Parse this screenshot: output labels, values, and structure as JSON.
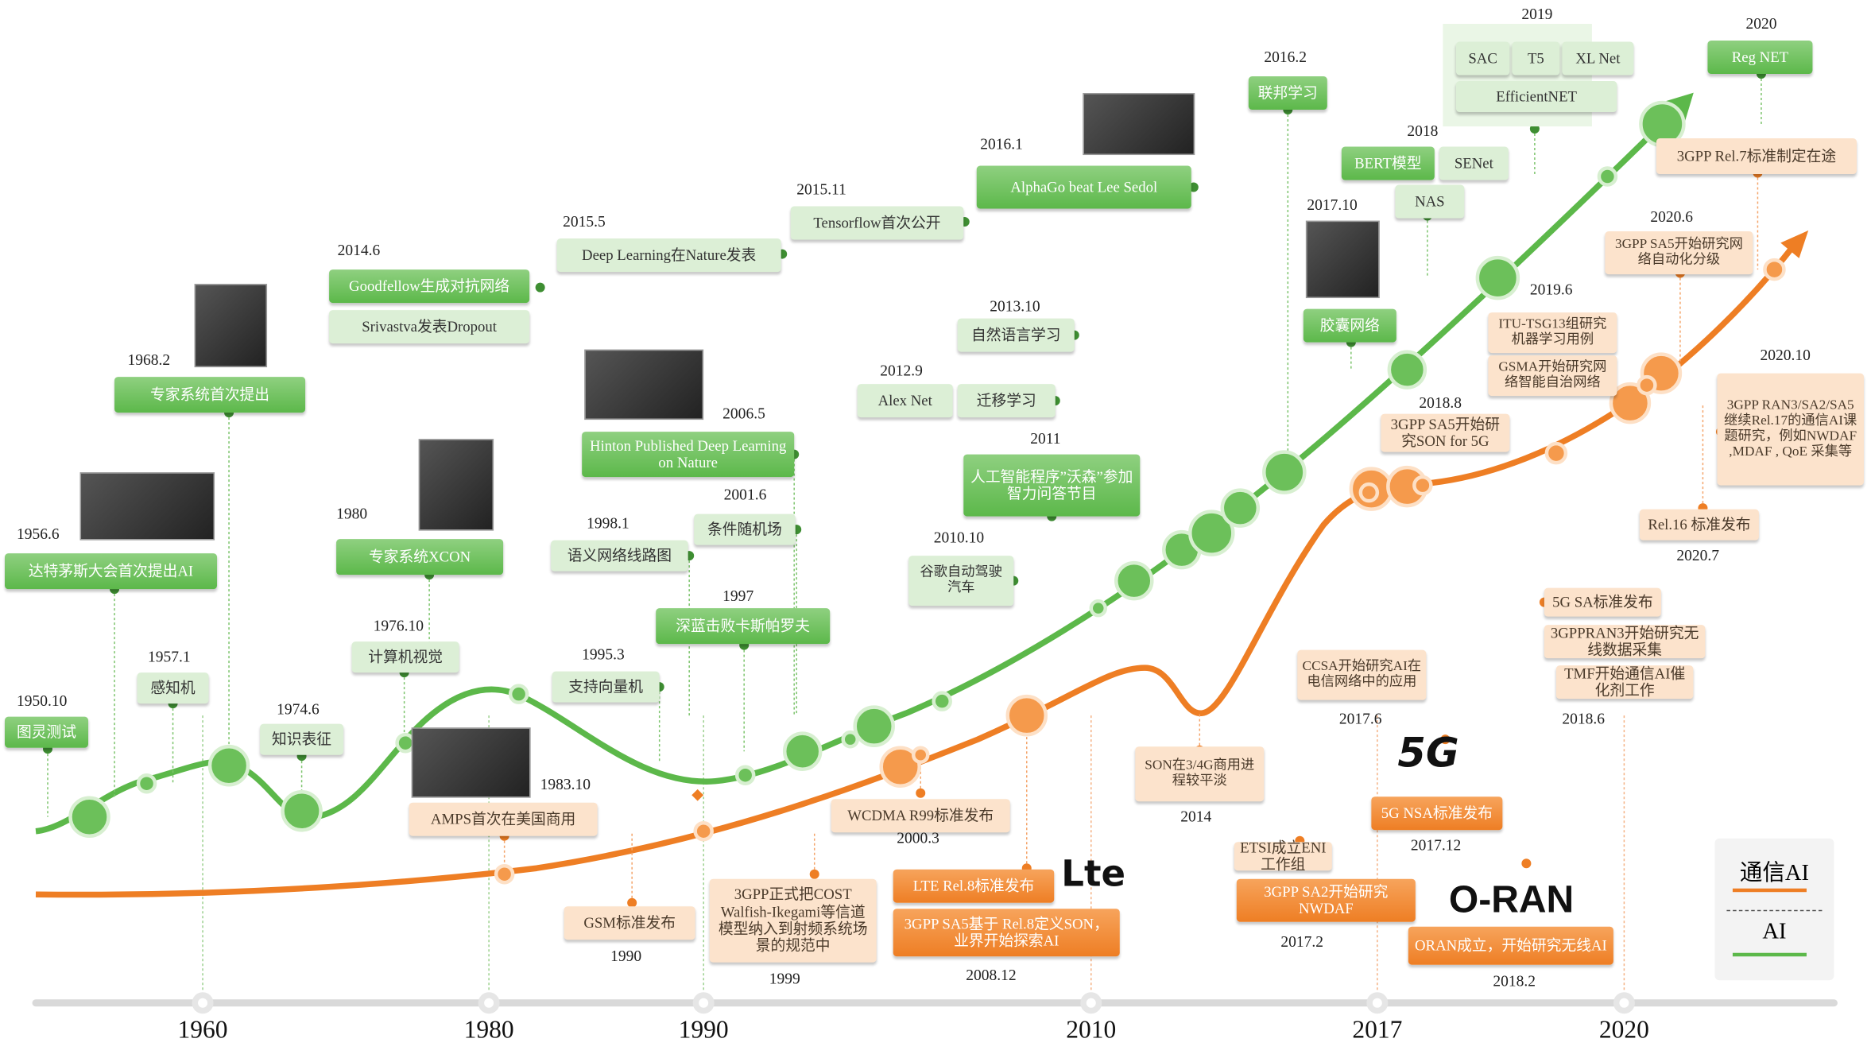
{
  "colors": {
    "ai": "#5cb84a",
    "comm": "#ee7e24",
    "axis": "#d9d9d9"
  },
  "axis": {
    "labels": [
      "1960",
      "1980",
      "1990",
      "2010",
      "2017",
      "2020"
    ]
  },
  "legend": {
    "comm_label": "通信AI",
    "ai_label": "AI"
  },
  "logos": {
    "g5": "5G",
    "lte": "Lte",
    "oran": "O-RAN"
  },
  "ai_events": [
    {
      "date": "1950.10",
      "text": "图灵测试"
    },
    {
      "date": "1957.1",
      "text": "感知机"
    },
    {
      "date": "1956.6",
      "text": "达特茅斯大会首次提出AI"
    },
    {
      "date": "1968.2",
      "text": "专家系统首次提出"
    },
    {
      "date": "1974.6",
      "text": "知识表征"
    },
    {
      "date": "1976.10",
      "text": "计算机视觉"
    },
    {
      "date": "1980",
      "text": "专家系统XCON"
    },
    {
      "date": "1995.3",
      "text": "支持向量机"
    },
    {
      "date": "1998.1",
      "text": "语义网络线路图"
    },
    {
      "date": "2001.6",
      "text": "条件随机场"
    },
    {
      "date": "1997",
      "text": "深蓝击败卡斯帕罗夫"
    },
    {
      "date": "2006.5",
      "text": "Hinton Published Deep Learning on Nature"
    },
    {
      "date": "2014.6",
      "text": "Goodfellow生成对抗网络"
    },
    {
      "date": "",
      "text": "Srivastva发表Dropout"
    },
    {
      "date": "2015.5",
      "text": "Deep Learning在Nature发表"
    },
    {
      "date": "2015.11",
      "text": "Tensorflow首次公开"
    },
    {
      "date": "2016.1",
      "text": "AlphaGo beat Lee Sedol"
    },
    {
      "date": "2013.10",
      "text": "自然语言学习"
    },
    {
      "date": "2012.9",
      "text": "Alex Net"
    },
    {
      "date": "",
      "text": "迁移学习"
    },
    {
      "date": "2011",
      "text": "人工智能程序”沃森”参加智力问答节目"
    },
    {
      "date": "2010.10",
      "text": "谷歌自动驾驶汽车"
    },
    {
      "date": "2016.2",
      "text": "联邦学习"
    },
    {
      "date": "2017.10",
      "text": "胶囊网络"
    },
    {
      "date": "2018",
      "text": "BERT模型"
    },
    {
      "date": "",
      "text": "SENet"
    },
    {
      "date": "",
      "text": "NAS"
    },
    {
      "date": "2019",
      "text": "SAC"
    },
    {
      "date": "",
      "text": "T5"
    },
    {
      "date": "",
      "text": "XL Net"
    },
    {
      "date": "",
      "text": "EfficientNET"
    },
    {
      "date": "2020",
      "text": "Reg NET"
    }
  ],
  "comm_events": [
    {
      "date": "1983.10",
      "text": "AMPS首次在美国商用"
    },
    {
      "date": "1990",
      "text": "GSM标准发布"
    },
    {
      "date": "1999",
      "text": "3GPP正式把COST Walfish-Ikegami等信道模型纳入到射频系统场景的规范中"
    },
    {
      "date": "2000.3",
      "text": "WCDMA R99标准发布"
    },
    {
      "date": "",
      "text": "LTE Rel.8标准发布"
    },
    {
      "date": "2008.12",
      "text": "3GPP SA5基于 Rel.8定义SON，业界开始探索AI"
    },
    {
      "date": "2014",
      "text": "SON在3/4G商用进程较平淡"
    },
    {
      "date": "2017.6",
      "text": "CCSA开始研究AI在电信网络中的应用"
    },
    {
      "date": "",
      "text": "ETSI成立ENI工作组"
    },
    {
      "date": "2017.2",
      "text": "3GPP SA2开始研究NWDAF"
    },
    {
      "date": "2017.12",
      "text": "5G NSA标准发布"
    },
    {
      "date": "2018.2",
      "text": "ORAN成立，开始研究无线AI"
    },
    {
      "date": "2018.8",
      "text": "3GPP SA5开始研究SON for 5G"
    },
    {
      "date": "2019.6",
      "text": "ITU-TSG13组研究机器学习用例"
    },
    {
      "date": "",
      "text": "GSMA开始研究网络智能自治网络"
    },
    {
      "date": "",
      "text": "5G SA标准发布"
    },
    {
      "date": "",
      "text": "3GPPRAN3开始研究无线数据采集"
    },
    {
      "date": "2018.6",
      "text": "TMF开始通信AI催化剂工作"
    },
    {
      "date": "",
      "text": "3GPP Rel.7标准制定在途"
    },
    {
      "date": "2020.6",
      "text": "3GPP SA5开始研究网络自动化分级"
    },
    {
      "date": "2020.10",
      "text": "3GPP RAN3/SA2/SA5继续Rel.17的通信AI课题研究，例如NWDAF ,MDAF , QoE 采集等"
    },
    {
      "date": "2020.7",
      "text": "Rel.16 标准发布"
    }
  ]
}
